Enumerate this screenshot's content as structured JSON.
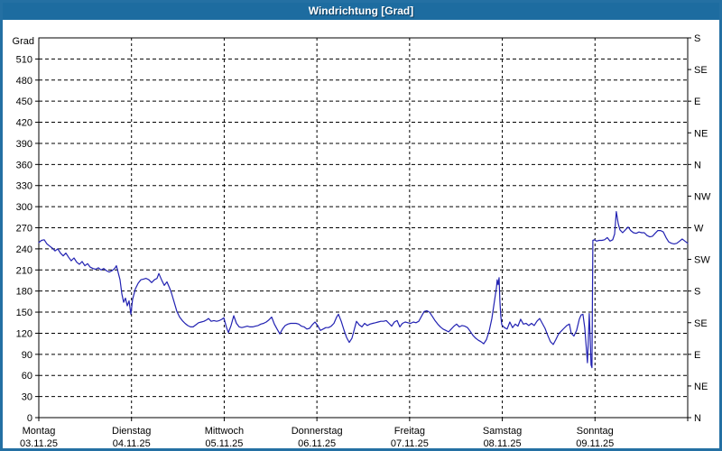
{
  "window": {
    "title": "Windrichtung [Grad]"
  },
  "colors": {
    "frame_blue": "#1d6ca0",
    "border_blue": "#2470a3",
    "line_blue": "#2222b2",
    "grid_black": "#000000",
    "plot_background": "#ffffff",
    "text_black": "#000000",
    "title_text": "#ffffff"
  },
  "chart_data": {
    "type": "line",
    "title": "Windrichtung [Grad]",
    "grid": {
      "style": "dashed",
      "horizontal_step_deg": 30,
      "vertical_step_days": 1
    },
    "legend": "none",
    "y_left": {
      "unit_label": "Grad",
      "min": 0,
      "max": 540,
      "tick_step": 30,
      "tick_labels": [
        0,
        30,
        60,
        90,
        120,
        150,
        180,
        210,
        240,
        270,
        300,
        330,
        360,
        390,
        420,
        450,
        480,
        510
      ]
    },
    "y_right": {
      "tick_step_deg": 45,
      "labels_top_to_bottom": [
        "S",
        "SE",
        "E",
        "NE",
        "N",
        "NW",
        "W",
        "SW",
        "S",
        "SE",
        "E",
        "NE",
        "N"
      ]
    },
    "x_axis": {
      "span_days": 7,
      "days": [
        {
          "weekday": "Montag",
          "date": "03.11.25"
        },
        {
          "weekday": "Dienstag",
          "date": "04.11.25"
        },
        {
          "weekday": "Mittwoch",
          "date": "05.11.25"
        },
        {
          "weekday": "Donnerstag",
          "date": "06.11.25"
        },
        {
          "weekday": "Freitag",
          "date": "07.11.25"
        },
        {
          "weekday": "Samstag",
          "date": "08.11.25"
        },
        {
          "weekday": "Sonntag",
          "date": "09.11.25"
        }
      ]
    },
    "series": [
      {
        "name": "Windrichtung",
        "unit": "Grad",
        "color": "#2222b2",
        "points_days_deg": [
          [
            0,
            249
          ],
          [
            0.029,
            252
          ],
          [
            0.058,
            253
          ],
          [
            0.088,
            247
          ],
          [
            0.117,
            244
          ],
          [
            0.146,
            241
          ],
          [
            0.175,
            237
          ],
          [
            0.204,
            240
          ],
          [
            0.234,
            234
          ],
          [
            0.263,
            230
          ],
          [
            0.292,
            234
          ],
          [
            0.321,
            228
          ],
          [
            0.35,
            223
          ],
          [
            0.38,
            227
          ],
          [
            0.409,
            221
          ],
          [
            0.438,
            218
          ],
          [
            0.467,
            222
          ],
          [
            0.497,
            216
          ],
          [
            0.526,
            219
          ],
          [
            0.555,
            214
          ],
          [
            0.584,
            212
          ],
          [
            0.613,
            211
          ],
          [
            0.643,
            213
          ],
          [
            0.672,
            210
          ],
          [
            0.701,
            212
          ],
          [
            0.73,
            209
          ],
          [
            0.759,
            207
          ],
          [
            0.789,
            209
          ],
          [
            0.818,
            212
          ],
          [
            0.837,
            216
          ],
          [
            0.857,
            206
          ],
          [
            0.876,
            196
          ],
          [
            0.896,
            176
          ],
          [
            0.915,
            164
          ],
          [
            0.935,
            170
          ],
          [
            0.954,
            159
          ],
          [
            0.974,
            166
          ],
          [
            0.993,
            147
          ],
          [
            1.012,
            168
          ],
          [
            1.042,
            183
          ],
          [
            1.071,
            191
          ],
          [
            1.1,
            196
          ],
          [
            1.129,
            197
          ],
          [
            1.158,
            198
          ],
          [
            1.188,
            196
          ],
          [
            1.217,
            192
          ],
          [
            1.246,
            196
          ],
          [
            1.275,
            198
          ],
          [
            1.295,
            205
          ],
          [
            1.324,
            196
          ],
          [
            1.353,
            188
          ],
          [
            1.382,
            193
          ],
          [
            1.412,
            184
          ],
          [
            1.431,
            177
          ],
          [
            1.46,
            164
          ],
          [
            1.49,
            151
          ],
          [
            1.519,
            143
          ],
          [
            1.548,
            138
          ],
          [
            1.577,
            134
          ],
          [
            1.606,
            131
          ],
          [
            1.636,
            129
          ],
          [
            1.665,
            129
          ],
          [
            1.694,
            132
          ],
          [
            1.723,
            135
          ],
          [
            1.752,
            136
          ],
          [
            1.782,
            137
          ],
          [
            1.811,
            139
          ],
          [
            1.83,
            141
          ],
          [
            1.86,
            137
          ],
          [
            1.889,
            138
          ],
          [
            1.918,
            137
          ],
          [
            1.947,
            138
          ],
          [
            1.976,
            140
          ],
          [
            1.996,
            142
          ],
          [
            2.025,
            128
          ],
          [
            2.045,
            121
          ],
          [
            2.074,
            131
          ],
          [
            2.103,
            145
          ],
          [
            2.132,
            134
          ],
          [
            2.161,
            129
          ],
          [
            2.19,
            128
          ],
          [
            2.22,
            129
          ],
          [
            2.249,
            130
          ],
          [
            2.278,
            129
          ],
          [
            2.307,
            129
          ],
          [
            2.337,
            130
          ],
          [
            2.366,
            131
          ],
          [
            2.395,
            133
          ],
          [
            2.424,
            134
          ],
          [
            2.453,
            136
          ],
          [
            2.483,
            139
          ],
          [
            2.512,
            143
          ],
          [
            2.541,
            133
          ],
          [
            2.57,
            126
          ],
          [
            2.6,
            119
          ],
          [
            2.629,
            126
          ],
          [
            2.658,
            131
          ],
          [
            2.687,
            133
          ],
          [
            2.716,
            134
          ],
          [
            2.746,
            134
          ],
          [
            2.775,
            134
          ],
          [
            2.804,
            133
          ],
          [
            2.833,
            130
          ],
          [
            2.862,
            129
          ],
          [
            2.892,
            126
          ],
          [
            2.921,
            127
          ],
          [
            2.95,
            132
          ],
          [
            2.979,
            136
          ],
          [
            3.008,
            131
          ],
          [
            3.038,
            124
          ],
          [
            3.067,
            126
          ],
          [
            3.096,
            128
          ],
          [
            3.125,
            128
          ],
          [
            3.154,
            130
          ],
          [
            3.184,
            134
          ],
          [
            3.213,
            143
          ],
          [
            3.232,
            147
          ],
          [
            3.262,
            137
          ],
          [
            3.291,
            125
          ],
          [
            3.32,
            114
          ],
          [
            3.349,
            107
          ],
          [
            3.378,
            113
          ],
          [
            3.408,
            128
          ],
          [
            3.427,
            137
          ],
          [
            3.456,
            132
          ],
          [
            3.485,
            129
          ],
          [
            3.515,
            134
          ],
          [
            3.544,
            131
          ],
          [
            3.573,
            133
          ],
          [
            3.602,
            134
          ],
          [
            3.631,
            135
          ],
          [
            3.661,
            136
          ],
          [
            3.69,
            137
          ],
          [
            3.719,
            137
          ],
          [
            3.748,
            138
          ],
          [
            3.777,
            134
          ],
          [
            3.807,
            130
          ],
          [
            3.836,
            136
          ],
          [
            3.865,
            138
          ],
          [
            3.894,
            129
          ],
          [
            3.923,
            134
          ],
          [
            3.953,
            136
          ],
          [
            3.982,
            135
          ],
          [
            4.011,
            134
          ],
          [
            4.04,
            136
          ],
          [
            4.069,
            135
          ],
          [
            4.099,
            137
          ],
          [
            4.128,
            144
          ],
          [
            4.157,
            151
          ],
          [
            4.186,
            152
          ],
          [
            4.215,
            150
          ],
          [
            4.245,
            144
          ],
          [
            4.274,
            138
          ],
          [
            4.303,
            133
          ],
          [
            4.332,
            129
          ],
          [
            4.361,
            126
          ],
          [
            4.391,
            124
          ],
          [
            4.42,
            122
          ],
          [
            4.449,
            126
          ],
          [
            4.478,
            130
          ],
          [
            4.507,
            133
          ],
          [
            4.537,
            129
          ],
          [
            4.566,
            131
          ],
          [
            4.595,
            130
          ],
          [
            4.624,
            128
          ],
          [
            4.653,
            123
          ],
          [
            4.683,
            117
          ],
          [
            4.712,
            113
          ],
          [
            4.741,
            110
          ],
          [
            4.77,
            108
          ],
          [
            4.8,
            105
          ],
          [
            4.829,
            111
          ],
          [
            4.858,
            123
          ],
          [
            4.887,
            141
          ],
          [
            4.916,
            166
          ],
          [
            4.936,
            184
          ],
          [
            4.945,
            196
          ],
          [
            4.955,
            189
          ],
          [
            4.965,
            199
          ],
          [
            4.974,
            166
          ],
          [
            4.984,
            144
          ],
          [
            4.994,
            132
          ],
          [
            5.023,
            128
          ],
          [
            5.052,
            126
          ],
          [
            5.081,
            136
          ],
          [
            5.11,
            128
          ],
          [
            5.14,
            133
          ],
          [
            5.169,
            130
          ],
          [
            5.198,
            140
          ],
          [
            5.227,
            133
          ],
          [
            5.257,
            134
          ],
          [
            5.286,
            131
          ],
          [
            5.315,
            134
          ],
          [
            5.344,
            131
          ],
          [
            5.373,
            137
          ],
          [
            5.403,
            141
          ],
          [
            5.432,
            134
          ],
          [
            5.461,
            127
          ],
          [
            5.49,
            117
          ],
          [
            5.519,
            108
          ],
          [
            5.549,
            104
          ],
          [
            5.578,
            111
          ],
          [
            5.607,
            119
          ],
          [
            5.636,
            123
          ],
          [
            5.665,
            127
          ],
          [
            5.695,
            131
          ],
          [
            5.724,
            133
          ],
          [
            5.743,
            120
          ],
          [
            5.772,
            116
          ],
          [
            5.802,
            124
          ],
          [
            5.831,
            140
          ],
          [
            5.85,
            146
          ],
          [
            5.87,
            147
          ],
          [
            5.889,
            128
          ],
          [
            5.909,
            95
          ],
          [
            5.918,
            78
          ],
          [
            5.928,
            110
          ],
          [
            5.938,
            148
          ],
          [
            5.948,
            115
          ],
          [
            5.957,
            75
          ],
          [
            5.967,
            71
          ],
          [
            5.977,
            252
          ],
          [
            5.996,
            253
          ],
          [
            6.016,
            251
          ],
          [
            6.045,
            252
          ],
          [
            6.074,
            252
          ],
          [
            6.103,
            253
          ],
          [
            6.133,
            256
          ],
          [
            6.162,
            251
          ],
          [
            6.191,
            253
          ],
          [
            6.211,
            261
          ],
          [
            6.23,
            293
          ],
          [
            6.25,
            276
          ],
          [
            6.269,
            267
          ],
          [
            6.298,
            263
          ],
          [
            6.328,
            267
          ],
          [
            6.357,
            271
          ],
          [
            6.386,
            266
          ],
          [
            6.415,
            263
          ],
          [
            6.444,
            262
          ],
          [
            6.474,
            264
          ],
          [
            6.503,
            263
          ],
          [
            6.532,
            263
          ],
          [
            6.561,
            259
          ],
          [
            6.591,
            257
          ],
          [
            6.62,
            258
          ],
          [
            6.649,
            262
          ],
          [
            6.678,
            266
          ],
          [
            6.708,
            266
          ],
          [
            6.737,
            264
          ],
          [
            6.766,
            256
          ],
          [
            6.795,
            250
          ],
          [
            6.824,
            248
          ],
          [
            6.854,
            247
          ],
          [
            6.883,
            248
          ],
          [
            6.912,
            251
          ],
          [
            6.941,
            254
          ],
          [
            6.97,
            251
          ],
          [
            7,
            248
          ]
        ]
      }
    ]
  }
}
